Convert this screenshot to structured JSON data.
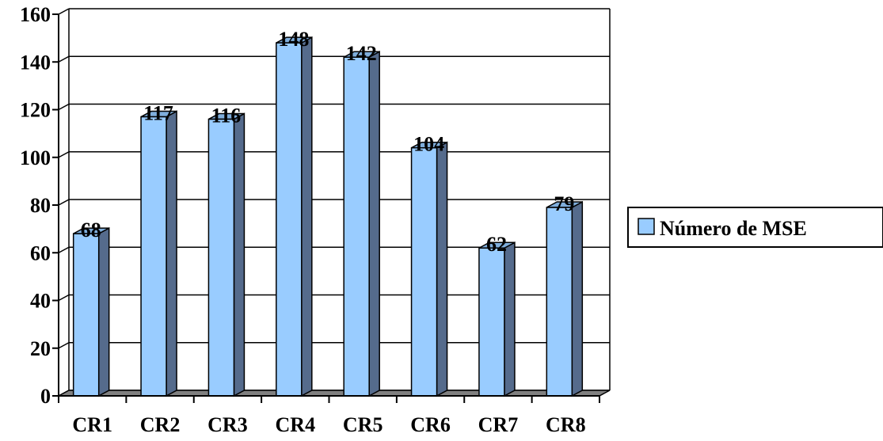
{
  "chart_data": {
    "type": "bar",
    "categories": [
      "CR1",
      "CR2",
      "CR3",
      "CR4",
      "CR5",
      "CR6",
      "CR7",
      "CR8"
    ],
    "series": [
      {
        "name": "Número de MSE",
        "values": [
          68,
          117,
          116,
          148,
          142,
          104,
          62,
          79
        ]
      }
    ],
    "data_labels": [
      "68",
      "117",
      "116",
      "148",
      "142",
      "104",
      "62",
      "79"
    ],
    "y_ticks": [
      "0",
      "20",
      "40",
      "60",
      "80",
      "100",
      "120",
      "140",
      "160"
    ],
    "ylim": [
      0,
      160
    ],
    "grid": true,
    "legend_position": "right",
    "colors": {
      "bar_front": "#99ccff",
      "bar_side": "#556b8c",
      "bar_top": "#7faedc",
      "floor": "#808080",
      "legend_swatch": "#99ccff"
    }
  }
}
